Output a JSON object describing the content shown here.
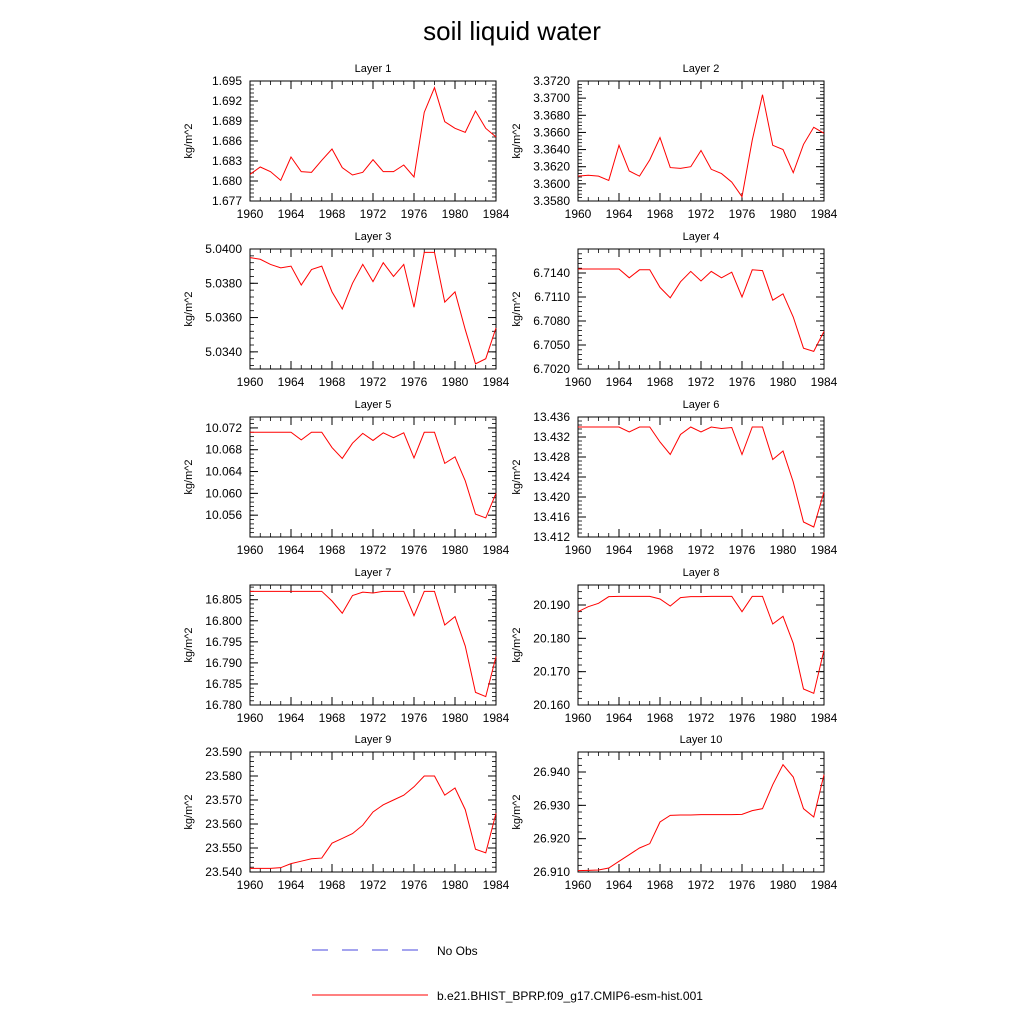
{
  "figure": {
    "title": "soil liquid water",
    "legend": [
      {
        "label": "No Obs",
        "color": "#4a4adf",
        "dash": true
      },
      {
        "label": "b.e21.BHIST_BPRP.f09_g17.CMIP6-esm-hist.001",
        "color": "#ff0000",
        "dash": false
      }
    ],
    "line_color": "#ff0000"
  },
  "chart_data": [
    {
      "type": "line",
      "title": "Layer 1",
      "ylabel": "kg/m^2",
      "xlim": [
        1960,
        1984
      ],
      "ylim": [
        1.677,
        1.695
      ],
      "xticks": [
        "1960",
        "1964",
        "1968",
        "1972",
        "1976",
        "1980",
        "1984"
      ],
      "yticks": [
        "1.677",
        "1.680",
        "1.683",
        "1.686",
        "1.689",
        "1.692",
        "1.695"
      ],
      "x": [
        1960,
        1961,
        1962,
        1963,
        1964,
        1965,
        1966,
        1967,
        1968,
        1969,
        1970,
        1971,
        1972,
        1973,
        1974,
        1975,
        1976,
        1977,
        1978,
        1979,
        1980,
        1981,
        1982,
        1983,
        1984
      ],
      "series": [
        {
          "name": "b.e21.BHIST_BPRP.f09_g17.CMIP6-esm-hist.001",
          "values": [
            1.681,
            1.6821,
            1.6814,
            1.6801,
            1.6836,
            1.6814,
            1.6813,
            1.6831,
            1.6848,
            1.682,
            1.6809,
            1.6813,
            1.6832,
            1.6814,
            1.6814,
            1.6824,
            1.6806,
            1.6903,
            1.694,
            1.6889,
            1.6879,
            1.6873,
            1.6905,
            1.6879,
            1.6866
          ]
        }
      ]
    },
    {
      "type": "line",
      "title": "Layer 2",
      "ylabel": "kg/m^2",
      "xlim": [
        1960,
        1984
      ],
      "ylim": [
        3.358,
        3.372
      ],
      "xticks": [
        "1960",
        "1964",
        "1968",
        "1972",
        "1976",
        "1980",
        "1984"
      ],
      "yticks": [
        "3.3580",
        "3.3600",
        "3.3620",
        "3.3640",
        "3.3660",
        "3.3680",
        "3.3700",
        "3.3720"
      ],
      "x": [
        1960,
        1961,
        1962,
        1963,
        1964,
        1965,
        1966,
        1967,
        1968,
        1969,
        1970,
        1971,
        1972,
        1973,
        1974,
        1975,
        1976,
        1977,
        1978,
        1979,
        1980,
        1981,
        1982,
        1983,
        1984
      ],
      "series": [
        {
          "name": "b.e21.BHIST_BPRP.f09_g17.CMIP6-esm-hist.001",
          "values": [
            3.3609,
            3.361,
            3.3609,
            3.3604,
            3.3645,
            3.3615,
            3.3609,
            3.3628,
            3.3654,
            3.3619,
            3.3618,
            3.362,
            3.3639,
            3.3617,
            3.3612,
            3.3602,
            3.3585,
            3.3651,
            3.3704,
            3.3645,
            3.364,
            3.3613,
            3.3646,
            3.3666,
            3.3659
          ]
        }
      ]
    },
    {
      "type": "line",
      "title": "Layer 3",
      "ylabel": "kg/m^2",
      "xlim": [
        1960,
        1984
      ],
      "ylim": [
        5.033,
        5.04
      ],
      "xticks": [
        "1960",
        "1964",
        "1968",
        "1972",
        "1976",
        "1980",
        "1984"
      ],
      "yticks": [
        "5.0340",
        "5.0360",
        "5.0380",
        "5.0400"
      ],
      "x": [
        1960,
        1961,
        1962,
        1963,
        1964,
        1965,
        1966,
        1967,
        1968,
        1969,
        1970,
        1971,
        1972,
        1973,
        1974,
        1975,
        1976,
        1977,
        1978,
        1979,
        1980,
        1981,
        1982,
        1983,
        1984
      ],
      "series": [
        {
          "name": "b.e21.BHIST_BPRP.f09_g17.CMIP6-esm-hist.001",
          "values": [
            5.0395,
            5.0394,
            5.0391,
            5.0389,
            5.039,
            5.0379,
            5.0388,
            5.039,
            5.0375,
            5.0365,
            5.038,
            5.0391,
            5.0381,
            5.0392,
            5.0384,
            5.0391,
            5.0366,
            5.0398,
            5.0398,
            5.0369,
            5.0375,
            5.0353,
            5.0333,
            5.0336,
            5.0354
          ]
        }
      ]
    },
    {
      "type": "line",
      "title": "Layer 4",
      "ylabel": "kg/m^2",
      "xlim": [
        1960,
        1984
      ],
      "ylim": [
        6.702,
        6.717
      ],
      "xticks": [
        "1960",
        "1964",
        "1968",
        "1972",
        "1976",
        "1980",
        "1984"
      ],
      "yticks": [
        "6.7020",
        "6.7050",
        "6.7080",
        "6.7110",
        "6.7140"
      ],
      "x": [
        1960,
        1961,
        1962,
        1963,
        1964,
        1965,
        1966,
        1967,
        1968,
        1969,
        1970,
        1971,
        1972,
        1973,
        1974,
        1975,
        1976,
        1977,
        1978,
        1979,
        1980,
        1981,
        1982,
        1983,
        1984
      ],
      "series": [
        {
          "name": "b.e21.BHIST_BPRP.f09_g17.CMIP6-esm-hist.001",
          "values": [
            6.7145,
            6.7145,
            6.7145,
            6.7145,
            6.7145,
            6.7134,
            6.7144,
            6.7144,
            6.7122,
            6.7109,
            6.7129,
            6.7142,
            6.713,
            6.7142,
            6.7134,
            6.7141,
            6.711,
            6.7144,
            6.7143,
            6.7106,
            6.7114,
            6.7085,
            6.7046,
            6.7042,
            6.7067
          ]
        }
      ]
    },
    {
      "type": "line",
      "title": "Layer 5",
      "ylabel": "kg/m^2",
      "xlim": [
        1960,
        1984
      ],
      "ylim": [
        10.052,
        10.074
      ],
      "xticks": [
        "1960",
        "1964",
        "1968",
        "1972",
        "1976",
        "1980",
        "1984"
      ],
      "yticks": [
        "10.056",
        "10.060",
        "10.064",
        "10.068",
        "10.072"
      ],
      "x": [
        1960,
        1961,
        1962,
        1963,
        1964,
        1965,
        1966,
        1967,
        1968,
        1969,
        1970,
        1971,
        1972,
        1973,
        1974,
        1975,
        1976,
        1977,
        1978,
        1979,
        1980,
        1981,
        1982,
        1983,
        1984
      ],
      "series": [
        {
          "name": "b.e21.BHIST_BPRP.f09_g17.CMIP6-esm-hist.001",
          "values": [
            10.0712,
            10.0712,
            10.0712,
            10.0712,
            10.0712,
            10.0698,
            10.0712,
            10.0712,
            10.0684,
            10.0664,
            10.0692,
            10.071,
            10.0697,
            10.0711,
            10.0702,
            10.0711,
            10.0665,
            10.0712,
            10.0712,
            10.0655,
            10.0667,
            10.0623,
            10.0562,
            10.0555,
            10.06
          ]
        }
      ]
    },
    {
      "type": "line",
      "title": "Layer 6",
      "ylabel": "kg/m^2",
      "xlim": [
        1960,
        1984
      ],
      "ylim": [
        13.412,
        13.436
      ],
      "xticks": [
        "1960",
        "1964",
        "1968",
        "1972",
        "1976",
        "1980",
        "1984"
      ],
      "yticks": [
        "13.412",
        "13.416",
        "13.420",
        "13.424",
        "13.428",
        "13.432",
        "13.436"
      ],
      "x": [
        1960,
        1961,
        1962,
        1963,
        1964,
        1965,
        1966,
        1967,
        1968,
        1969,
        1970,
        1971,
        1972,
        1973,
        1974,
        1975,
        1976,
        1977,
        1978,
        1979,
        1980,
        1981,
        1982,
        1983,
        1984
      ],
      "series": [
        {
          "name": "b.e21.BHIST_BPRP.f09_g17.CMIP6-esm-hist.001",
          "values": [
            13.434,
            13.434,
            13.434,
            13.434,
            13.434,
            13.433,
            13.434,
            13.434,
            13.431,
            13.4285,
            13.4325,
            13.434,
            13.433,
            13.434,
            13.4337,
            13.4339,
            13.4285,
            13.434,
            13.434,
            13.4275,
            13.4292,
            13.423,
            13.415,
            13.414,
            13.421
          ]
        }
      ]
    },
    {
      "type": "line",
      "title": "Layer 7",
      "ylabel": "kg/m^2",
      "xlim": [
        1960,
        1984
      ],
      "ylim": [
        16.78,
        16.8085
      ],
      "xticks": [
        "1960",
        "1964",
        "1968",
        "1972",
        "1976",
        "1980",
        "1984"
      ],
      "yticks": [
        "16.780",
        "16.785",
        "16.790",
        "16.795",
        "16.800",
        "16.805"
      ],
      "x": [
        1960,
        1961,
        1962,
        1963,
        1964,
        1965,
        1966,
        1967,
        1968,
        1969,
        1970,
        1971,
        1972,
        1973,
        1974,
        1975,
        1976,
        1977,
        1978,
        1979,
        1980,
        1981,
        1982,
        1983,
        1984
      ],
      "series": [
        {
          "name": "b.e21.BHIST_BPRP.f09_g17.CMIP6-esm-hist.001",
          "values": [
            16.807,
            16.807,
            16.807,
            16.807,
            16.807,
            16.807,
            16.807,
            16.807,
            16.8047,
            16.8018,
            16.806,
            16.8068,
            16.8066,
            16.807,
            16.807,
            16.807,
            16.8012,
            16.807,
            16.807,
            16.799,
            16.801,
            16.794,
            16.783,
            16.782,
            16.7915
          ]
        }
      ]
    },
    {
      "type": "line",
      "title": "Layer 8",
      "ylabel": "kg/m^2",
      "xlim": [
        1960,
        1984
      ],
      "ylim": [
        20.16,
        20.196
      ],
      "xticks": [
        "1960",
        "1964",
        "1968",
        "1972",
        "1976",
        "1980",
        "1984"
      ],
      "yticks": [
        "20.160",
        "20.170",
        "20.180",
        "20.190"
      ],
      "x": [
        1960,
        1961,
        1962,
        1963,
        1964,
        1965,
        1966,
        1967,
        1968,
        1969,
        1970,
        1971,
        1972,
        1973,
        1974,
        1975,
        1976,
        1977,
        1978,
        1979,
        1980,
        1981,
        1982,
        1983,
        1984
      ],
      "series": [
        {
          "name": "b.e21.BHIST_BPRP.f09_g17.CMIP6-esm-hist.001",
          "values": [
            20.188,
            20.1895,
            20.1905,
            20.1925,
            20.1926,
            20.1926,
            20.1926,
            20.1926,
            20.1918,
            20.1897,
            20.1922,
            20.1925,
            20.1925,
            20.1926,
            20.1926,
            20.1926,
            20.188,
            20.1926,
            20.1926,
            20.1843,
            20.1866,
            20.1785,
            20.1648,
            20.1635,
            20.1765
          ]
        }
      ]
    },
    {
      "type": "line",
      "title": "Layer 9",
      "ylabel": "kg/m^2",
      "xlim": [
        1960,
        1984
      ],
      "ylim": [
        23.54,
        23.59
      ],
      "xticks": [
        "1960",
        "1964",
        "1968",
        "1972",
        "1976",
        "1980",
        "1984"
      ],
      "yticks": [
        "23.540",
        "23.550",
        "23.560",
        "23.570",
        "23.580",
        "23.590"
      ],
      "x": [
        1960,
        1961,
        1962,
        1963,
        1964,
        1965,
        1966,
        1967,
        1968,
        1969,
        1970,
        1971,
        1972,
        1973,
        1974,
        1975,
        1976,
        1977,
        1978,
        1979,
        1980,
        1981,
        1982,
        1983,
        1984
      ],
      "series": [
        {
          "name": "b.e21.BHIST_BPRP.f09_g17.CMIP6-esm-hist.001",
          "values": [
            23.5415,
            23.5415,
            23.5415,
            23.5418,
            23.5435,
            23.5445,
            23.5455,
            23.5458,
            23.552,
            23.554,
            23.556,
            23.5595,
            23.565,
            23.568,
            23.57,
            23.572,
            23.5755,
            23.58,
            23.58,
            23.572,
            23.575,
            23.566,
            23.5495,
            23.548,
            23.5645
          ]
        }
      ]
    },
    {
      "type": "line",
      "title": "Layer 10",
      "ylabel": "kg/m^2",
      "xlim": [
        1960,
        1984
      ],
      "ylim": [
        26.91,
        26.946
      ],
      "xticks": [
        "1960",
        "1964",
        "1968",
        "1972",
        "1976",
        "1980",
        "1984"
      ],
      "yticks": [
        "26.910",
        "26.920",
        "26.930",
        "26.940"
      ],
      "x": [
        1960,
        1961,
        1962,
        1963,
        1964,
        1965,
        1966,
        1967,
        1968,
        1969,
        1970,
        1971,
        1972,
        1973,
        1974,
        1975,
        1976,
        1977,
        1978,
        1979,
        1980,
        1981,
        1982,
        1983,
        1984
      ],
      "series": [
        {
          "name": "b.e21.BHIST_BPRP.f09_g17.CMIP6-esm-hist.001",
          "values": [
            26.9104,
            26.9105,
            26.9106,
            26.9112,
            26.9132,
            26.9152,
            26.9172,
            26.9185,
            26.925,
            26.927,
            26.9271,
            26.9271,
            26.9272,
            26.9272,
            26.9272,
            26.9272,
            26.9273,
            26.9284,
            26.929,
            26.9362,
            26.9422,
            26.9385,
            26.929,
            26.9265,
            26.9392
          ]
        }
      ]
    }
  ]
}
